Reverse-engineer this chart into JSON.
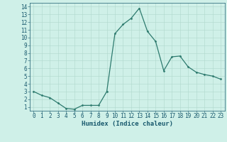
{
  "x": [
    0,
    1,
    2,
    3,
    4,
    5,
    6,
    7,
    8,
    9,
    10,
    11,
    12,
    13,
    14,
    15,
    16,
    17,
    18,
    19,
    20,
    21,
    22,
    23
  ],
  "y": [
    3.0,
    2.5,
    2.2,
    1.5,
    0.8,
    0.7,
    1.2,
    1.2,
    1.2,
    3.0,
    10.5,
    11.7,
    12.5,
    13.8,
    10.8,
    9.5,
    5.7,
    7.5,
    7.6,
    6.2,
    5.5,
    5.2,
    5.0,
    4.6
  ],
  "line_color": "#2d7a6e",
  "marker": "D",
  "marker_size": 1.5,
  "line_width": 0.9,
  "bg_color": "#cff0e8",
  "grid_color": "#b0d8cc",
  "xlabel": "Humidex (Indice chaleur)",
  "xlabel_fontsize": 6.5,
  "xlabel_color": "#1a5a6e",
  "ylabel_ticks": [
    1,
    2,
    3,
    4,
    5,
    6,
    7,
    8,
    9,
    10,
    11,
    12,
    13,
    14
  ],
  "xlabel_ticks": [
    0,
    1,
    2,
    3,
    4,
    5,
    6,
    7,
    8,
    9,
    10,
    11,
    12,
    13,
    14,
    15,
    16,
    17,
    18,
    19,
    20,
    21,
    22,
    23
  ],
  "ylim": [
    0.5,
    14.5
  ],
  "xlim": [
    -0.5,
    23.5
  ],
  "tick_fontsize": 5.5,
  "tick_color": "#1a5a6e"
}
